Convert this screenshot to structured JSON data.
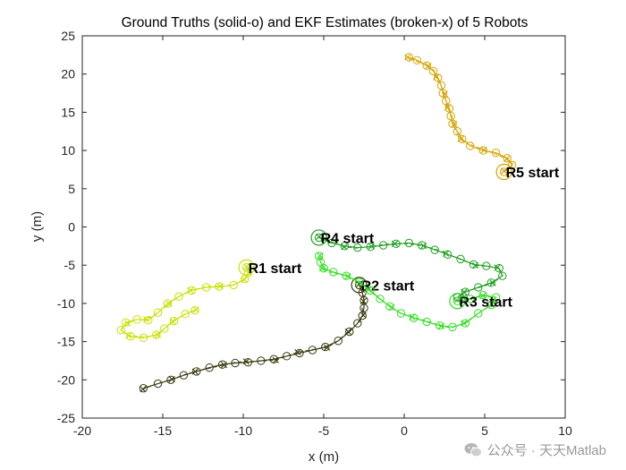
{
  "chart_data": {
    "type": "line",
    "title": "Ground Truths (solid-o) and EKF Estimates (broken-x) of 5 Robots",
    "xlabel": "x (m)",
    "ylabel": "y (m)",
    "xlim": [
      -20,
      10
    ],
    "ylim": [
      -25,
      25
    ],
    "xticks": [
      -20,
      -15,
      -10,
      -5,
      0,
      5,
      10
    ],
    "yticks": [
      -25,
      -20,
      -15,
      -10,
      -5,
      0,
      5,
      10,
      15,
      20,
      25
    ],
    "grid": false,
    "legend": "none",
    "series": [
      {
        "label": "R1 start",
        "color": "#c9e000",
        "start": [
          -9.8,
          -5.3
        ],
        "points": [
          [
            -9.8,
            -5.3
          ],
          [
            -9.7,
            -6.0
          ],
          [
            -9.9,
            -6.8
          ],
          [
            -10.6,
            -7.6
          ],
          [
            -11.5,
            -7.8
          ],
          [
            -12.3,
            -7.9
          ],
          [
            -13.2,
            -8.3
          ],
          [
            -14.0,
            -9.1
          ],
          [
            -14.7,
            -10.0
          ],
          [
            -15.3,
            -11.2
          ],
          [
            -15.9,
            -12.2
          ],
          [
            -16.6,
            -12.1
          ],
          [
            -17.3,
            -12.5
          ],
          [
            -17.6,
            -13.5
          ],
          [
            -17.0,
            -14.3
          ],
          [
            -16.2,
            -14.5
          ],
          [
            -15.4,
            -14.1
          ],
          [
            -14.9,
            -13.3
          ],
          [
            -14.3,
            -12.3
          ],
          [
            -13.6,
            -11.4
          ],
          [
            -13.0,
            -10.9
          ]
        ]
      },
      {
        "label": "R2 start",
        "color": "#3a3a10",
        "start": [
          -2.8,
          -7.6
        ],
        "points": [
          [
            -2.8,
            -7.6
          ],
          [
            -2.6,
            -8.6
          ],
          [
            -2.5,
            -9.6
          ],
          [
            -2.5,
            -10.6
          ],
          [
            -2.6,
            -11.6
          ],
          [
            -2.9,
            -12.6
          ],
          [
            -3.4,
            -13.7
          ],
          [
            -4.1,
            -14.9
          ],
          [
            -4.9,
            -15.7
          ],
          [
            -5.7,
            -16.1
          ],
          [
            -6.5,
            -16.5
          ],
          [
            -7.3,
            -16.9
          ],
          [
            -8.1,
            -17.3
          ],
          [
            -8.9,
            -17.5
          ],
          [
            -9.7,
            -17.7
          ],
          [
            -10.5,
            -17.8
          ],
          [
            -11.3,
            -18.0
          ],
          [
            -12.1,
            -18.4
          ],
          [
            -12.9,
            -18.9
          ],
          [
            -13.7,
            -19.4
          ],
          [
            -14.5,
            -20.0
          ],
          [
            -15.3,
            -20.5
          ],
          [
            -16.2,
            -21.1
          ]
        ]
      },
      {
        "label": "R3 start",
        "color": "#33dd22",
        "start": [
          3.3,
          -9.7
        ],
        "points": [
          [
            3.3,
            -9.7
          ],
          [
            4.1,
            -9.4
          ],
          [
            4.9,
            -8.9
          ],
          [
            5.7,
            -9.2
          ],
          [
            5.4,
            -10.2
          ],
          [
            4.6,
            -11.3
          ],
          [
            3.8,
            -12.6
          ],
          [
            3.0,
            -13.1
          ],
          [
            2.2,
            -12.9
          ],
          [
            1.4,
            -12.4
          ],
          [
            0.6,
            -11.9
          ],
          [
            -0.2,
            -11.3
          ],
          [
            -0.9,
            -10.4
          ],
          [
            -1.5,
            -9.4
          ],
          [
            -2.1,
            -8.3
          ],
          [
            -2.8,
            -7.2
          ],
          [
            -3.6,
            -6.4
          ],
          [
            -4.4,
            -5.9
          ],
          [
            -5.0,
            -5.4
          ],
          [
            -5.2,
            -4.6
          ],
          [
            -5.3,
            -3.8
          ]
        ]
      },
      {
        "label": "R4 start",
        "color": "#1f9e20",
        "start": [
          -5.3,
          -1.4
        ],
        "points": [
          [
            -5.3,
            -1.4
          ],
          [
            -4.5,
            -2.1
          ],
          [
            -3.7,
            -2.5
          ],
          [
            -2.9,
            -2.7
          ],
          [
            -2.1,
            -2.6
          ],
          [
            -1.3,
            -2.4
          ],
          [
            -0.5,
            -2.2
          ],
          [
            0.3,
            -2.1
          ],
          [
            1.1,
            -2.4
          ],
          [
            1.9,
            -3.0
          ],
          [
            2.7,
            -3.6
          ],
          [
            3.5,
            -4.2
          ],
          [
            4.3,
            -4.9
          ],
          [
            5.1,
            -5.1
          ],
          [
            5.9,
            -5.4
          ],
          [
            6.1,
            -6.4
          ],
          [
            5.4,
            -7.3
          ],
          [
            4.6,
            -7.9
          ],
          [
            3.8,
            -8.5
          ],
          [
            3.3,
            -9.2
          ]
        ]
      },
      {
        "label": "R5 start",
        "color": "#d4a300",
        "start": [
          6.2,
          7.2
        ],
        "points": [
          [
            6.2,
            7.2
          ],
          [
            6.7,
            8.1
          ],
          [
            6.4,
            9.0
          ],
          [
            5.7,
            9.7
          ],
          [
            4.9,
            10.0
          ],
          [
            4.1,
            10.6
          ],
          [
            3.6,
            11.5
          ],
          [
            3.3,
            12.5
          ],
          [
            3.0,
            13.5
          ],
          [
            2.9,
            14.5
          ],
          [
            2.8,
            15.5
          ],
          [
            2.6,
            16.5
          ],
          [
            2.4,
            17.5
          ],
          [
            2.3,
            18.5
          ],
          [
            2.1,
            19.5
          ],
          [
            1.8,
            20.4
          ],
          [
            1.4,
            21.1
          ],
          [
            0.8,
            21.8
          ],
          [
            0.3,
            22.2
          ]
        ]
      }
    ]
  },
  "watermark": {
    "text": "公众号 · 天天Matlab",
    "icon": "wechat-icon"
  }
}
